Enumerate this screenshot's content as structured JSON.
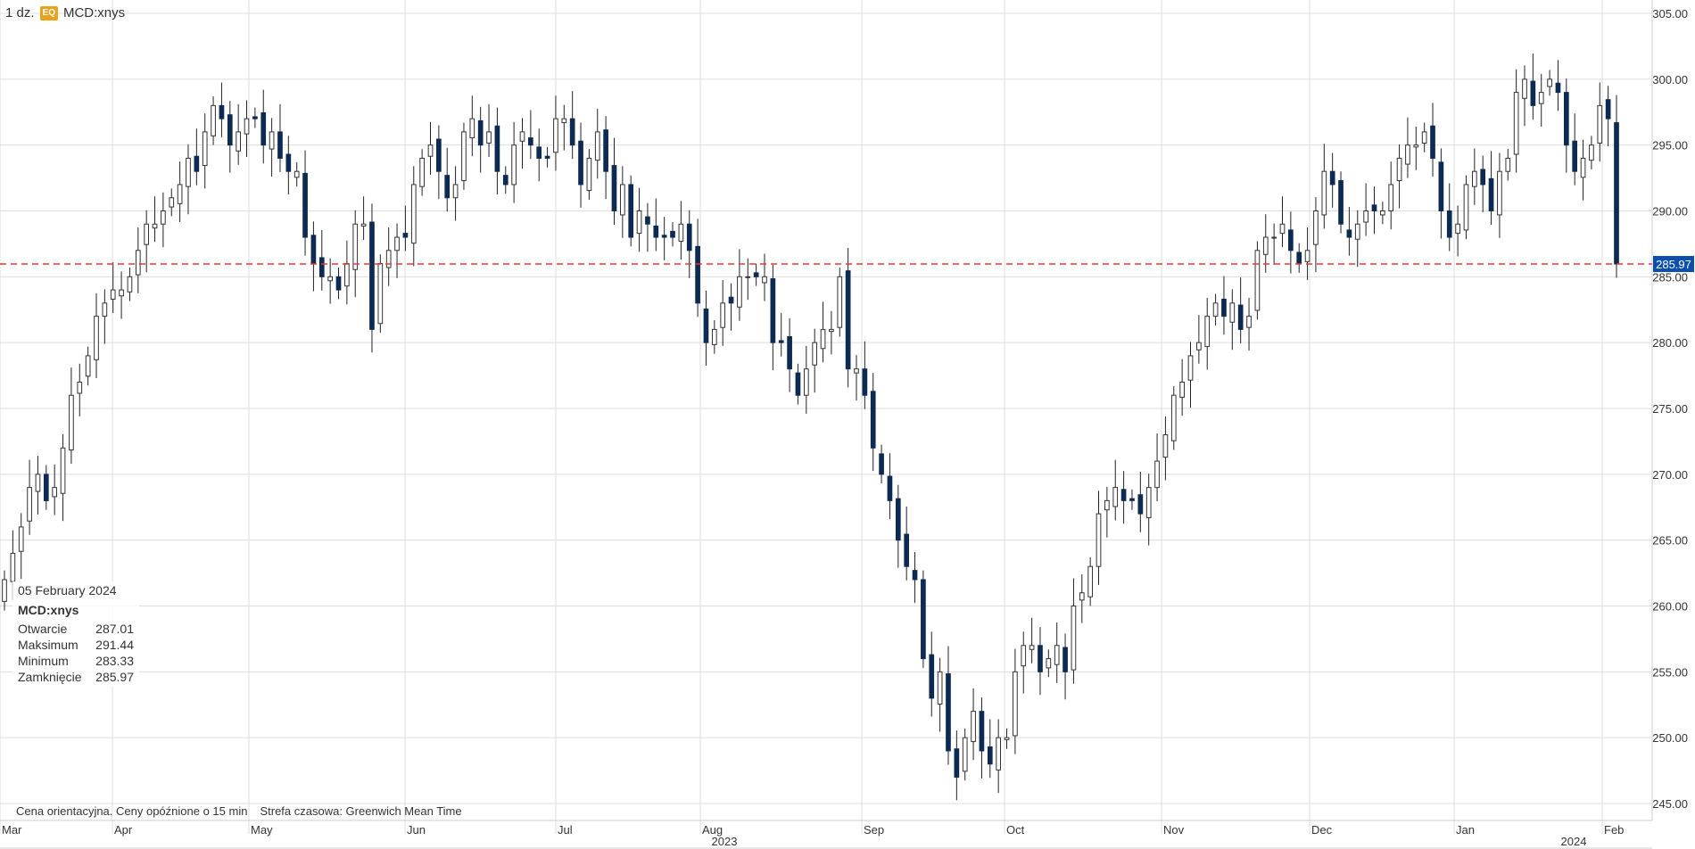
{
  "header": {
    "interval": "1 dz.",
    "badge": "EQ",
    "symbol": "MCD:xnys"
  },
  "tooltip": {
    "date": "05 February 2024",
    "symbol": "MCD:xnys",
    "rows": [
      {
        "label": "Otwarcie",
        "value": "287.01"
      },
      {
        "label": "Maksimum",
        "value": "291.44"
      },
      {
        "label": "Minimum",
        "value": "283.33"
      },
      {
        "label": "Zamknięcie",
        "value": "285.97"
      }
    ]
  },
  "footer": {
    "note1": "Cena orientacyjna. Ceny opóźnione o 15 min",
    "note2": "Strefa czasowa: Greenwich Mean Time"
  },
  "colors": {
    "up_fill": "#ffffff",
    "down_fill": "#0d2a52",
    "wick": "#222222",
    "grid": "#dddddd",
    "current_line": "#e53935",
    "current_badge": "#0a4fb0"
  },
  "chart_data": {
    "type": "candlestick",
    "ylim": [
      244,
      306
    ],
    "y_ticks": [
      "245.00",
      "250.00",
      "255.00",
      "260.00",
      "265.00",
      "270.00",
      "275.00",
      "280.00",
      "285.00",
      "290.00",
      "295.00",
      "300.00",
      "305.00"
    ],
    "x_month_labels": [
      "Mar",
      "Apr",
      "May",
      "Jun",
      "Jul",
      "Aug",
      "Sep",
      "Oct",
      "Nov",
      "Dec",
      "Jan",
      "Feb"
    ],
    "x_year_labels": [
      "2023",
      "2024"
    ],
    "current_price": "285.97",
    "grid": true,
    "close_series": [
      262,
      264,
      266,
      269,
      270,
      268,
      269,
      272,
      276,
      277,
      279,
      282,
      283,
      284,
      284,
      285,
      287,
      289,
      289,
      290,
      291,
      292,
      294,
      293,
      296,
      298,
      297,
      295,
      296,
      297,
      297,
      295,
      296,
      294,
      293,
      293,
      288,
      286,
      285,
      285,
      284,
      286,
      289,
      289,
      281,
      286,
      287,
      288,
      288,
      292,
      294,
      295,
      293,
      291,
      292,
      296,
      297,
      295,
      296,
      293,
      292,
      295,
      296,
      295,
      294,
      294,
      297,
      297,
      295,
      292,
      294,
      296,
      293,
      290,
      292,
      288,
      290,
      289,
      288,
      288,
      288,
      289,
      287,
      283,
      280,
      281,
      283,
      283,
      285,
      285,
      285,
      285,
      280,
      280,
      278,
      276,
      278,
      280,
      281,
      281,
      285,
      278,
      278,
      276,
      272,
      270,
      268,
      265,
      263,
      262,
      256,
      253,
      255,
      249,
      247,
      250,
      252,
      249,
      248,
      250,
      250,
      255,
      257,
      257,
      255,
      256,
      257,
      255,
      260,
      261,
      263,
      267,
      268,
      269,
      268,
      268,
      267,
      269,
      271,
      273,
      276,
      277,
      279,
      280,
      282,
      283,
      282,
      283,
      281,
      282,
      287,
      288,
      288,
      289,
      287,
      286,
      287,
      290,
      293,
      292,
      289,
      288,
      289,
      290,
      290,
      290,
      292,
      294,
      295,
      295,
      296,
      294,
      290,
      288,
      289,
      292,
      293,
      292,
      290,
      293,
      294,
      299,
      300,
      298,
      299,
      300,
      299,
      295,
      293,
      294,
      295,
      298,
      297,
      285.97
    ]
  }
}
